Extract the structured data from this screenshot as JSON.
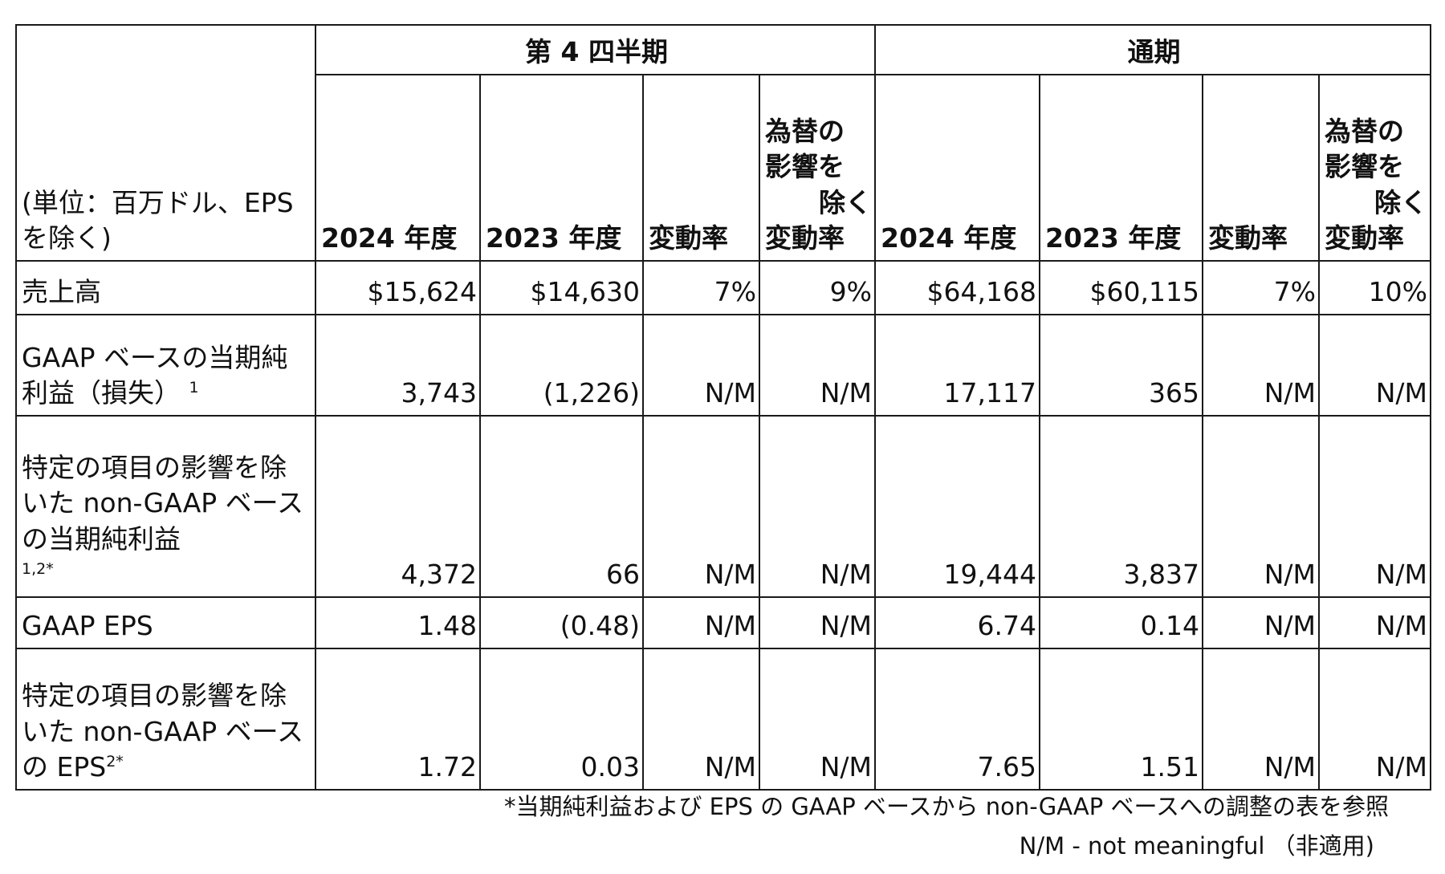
{
  "header": {
    "unit": "(単位：百万ドル、EPS を除く)",
    "group_q4": "第 4 四半期",
    "group_fy": "通期",
    "columns": {
      "q4_2024": "2024 年度",
      "q4_2023": "2023 年度",
      "q4_change": "変動率",
      "q4_fx_line1": "為替の",
      "q4_fx_line2": "影響を",
      "q4_fx_line3": "除く",
      "q4_fx_line4": "変動率",
      "fy_2024": "2024 年度",
      "fy_2023": "2023 年度",
      "fy_change": "変動率",
      "fy_fx_line1": "為替の",
      "fy_fx_line2": "影響を",
      "fy_fx_line3": "除く",
      "fy_fx_line4": "変動率"
    }
  },
  "rows": [
    {
      "label": "売上高",
      "sup": "",
      "values": [
        "$15,624",
        "$14,630",
        "7%",
        "9%",
        "$64,168",
        "$60,115",
        "7%",
        "10%"
      ]
    },
    {
      "label": "GAAP ベースの当期純利益（損失）",
      "sup": "1",
      "values": [
        "3,743",
        "(1,226)",
        "N/M",
        "N/M",
        "17,117",
        "365",
        "N/M",
        "N/M"
      ]
    },
    {
      "label": "特定の項目の影響を除いた non-GAAP ベースの当期純利益",
      "sup": "1,2*",
      "values": [
        "4,372",
        "66",
        "N/M",
        "N/M",
        "19,444",
        "3,837",
        "N/M",
        "N/M"
      ]
    },
    {
      "label": "GAAP EPS",
      "sup": "",
      "values": [
        "1.48",
        "(0.48)",
        "N/M",
        "N/M",
        "6.74",
        "0.14",
        "N/M",
        "N/M"
      ]
    },
    {
      "label": "特定の項目の影響を除いた non-GAAP ベースの EPS",
      "sup": "2*",
      "values": [
        "1.72",
        "0.03",
        "N/M",
        "N/M",
        "7.65",
        "1.51",
        "N/M",
        "N/M"
      ]
    }
  ],
  "footnotes": {
    "line1": "*当期純利益および EPS の GAAP ベースから non-GAAP ベースへの調整の表を参照",
    "line2": "N/M - not meaningful （非適用)"
  }
}
